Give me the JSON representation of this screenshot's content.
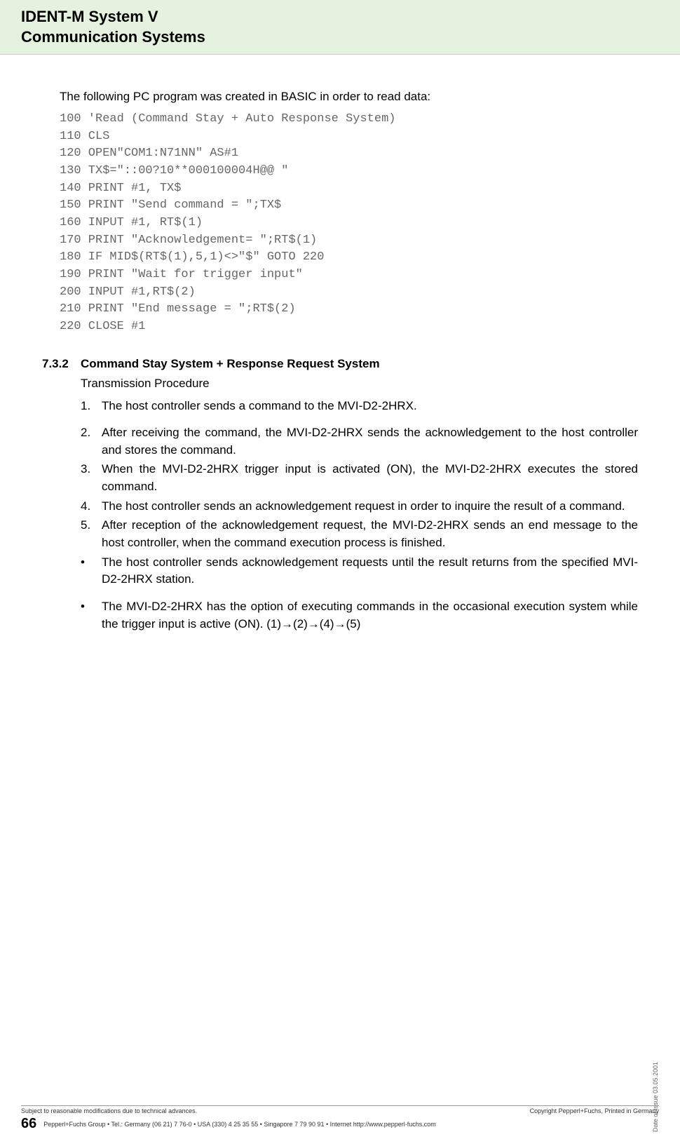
{
  "header": {
    "title_line1": "IDENT-M System V",
    "title_line2": "Communication Systems"
  },
  "content": {
    "intro": "The following PC program was created in BASIC in order to read data:",
    "code": "100 'Read (Command Stay + Auto Response System)\n110 CLS\n120 OPEN\"COM1:N71NN\" AS#1\n130 TX$=\"::00?10**000100004H@@ \"\n140 PRINT #1, TX$\n150 PRINT \"Send command = \";TX$\n160 INPUT #1, RT$(1)\n170 PRINT \"Acknowledgement= \";RT$(1)\n180 IF MID$(RT$(1),5,1)<>\"$\" GOTO 220\n190 PRINT \"Wait for trigger input\"\n200 INPUT #1,RT$(2)\n210 PRINT \"End message = \";RT$(2)\n220 CLOSE #1",
    "section": {
      "number": "7.3.2",
      "title": "Command Stay System + Response Request System",
      "subtitle": "Transmission Procedure",
      "items": [
        {
          "marker": "1.",
          "text": "The host controller sends a command to the MVI-D2-2HRX.",
          "spaced": true
        },
        {
          "marker": "2.",
          "text": "After receiving the command, the MVI-D2-2HRX sends the acknowledgement to the host controller and stores the command.",
          "spaced": false
        },
        {
          "marker": "3.",
          "text": "When the MVI-D2-2HRX trigger input is activated (ON), the MVI-D2-2HRX executes the stored command.",
          "spaced": false
        },
        {
          "marker": "4.",
          "text": "The host controller sends an acknowledgement request in order to inquire the result of a command.",
          "spaced": false
        },
        {
          "marker": "5.",
          "text": "After reception of the acknowledgement request, the MVI-D2-2HRX sends an end message to the host controller, when the command execution process is finished.",
          "spaced": false
        },
        {
          "marker": "•",
          "text": "The host controller sends acknowledgement requests until the result returns from the specified MVI-D2-2HRX station.",
          "spaced": true
        },
        {
          "marker": "•",
          "text": "The MVI-D2-2HRX has the option of executing commands in the occasional execution system while the trigger input is active (ON). (1)→(2)→(4)→(5)",
          "spaced": false
        }
      ]
    }
  },
  "footer": {
    "left_small": "Subject to reasonable modifications due to technical advances.",
    "right_small": "Copyright Pepperl+Fuchs, Printed in Germany",
    "page_number": "66",
    "contact": "Pepperl+Fuchs Group • Tel.: Germany (06 21) 7 76-0 • USA (330) 4 25 35 55 • Singapore 7 79 90 91 • Internet http://www.pepperl-fuchs.com",
    "date_of_issue": "Date of issue    03.05.2001"
  }
}
